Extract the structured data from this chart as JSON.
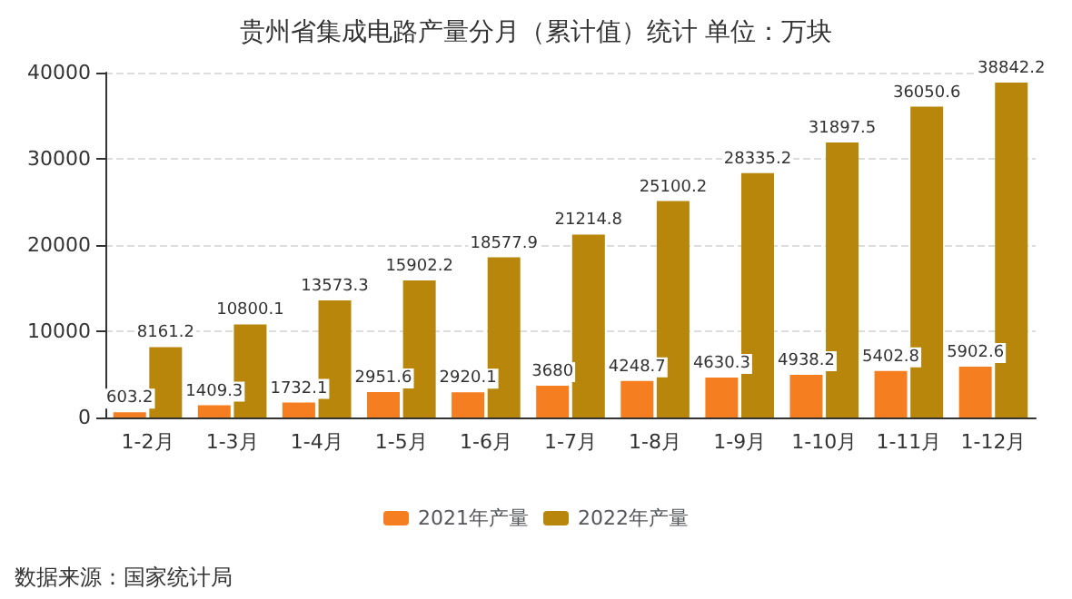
{
  "chart_data": {
    "type": "bar",
    "title": "贵州省集成电路产量分月（累计值）统计 单位：万块",
    "categories": [
      "1-2月",
      "1-3月",
      "1-4月",
      "1-5月",
      "1-6月",
      "1-7月",
      "1-8月",
      "1-9月",
      "1-10月",
      "1-11月",
      "1-12月"
    ],
    "series": [
      {
        "name": "2021年产量",
        "color": "#f57f20",
        "values": [
          603.2,
          1409.3,
          1732.1,
          2951.6,
          2920.1,
          3680,
          4248.7,
          4630.3,
          4938.2,
          5402.8,
          5902.6
        ]
      },
      {
        "name": "2022年产量",
        "color": "#b8860b",
        "values": [
          8161.2,
          10800.1,
          13573.3,
          15902.2,
          18577.9,
          21214.8,
          25100.2,
          28335.2,
          31897.5,
          36050.6,
          38842.2
        ]
      }
    ],
    "ylim": [
      0,
      40000
    ],
    "yticks": [
      0,
      10000,
      20000,
      30000,
      40000
    ],
    "grid": "y",
    "legend": "bottom",
    "data_labels": true,
    "annotations": [
      "数据来源：国家统计局"
    ]
  }
}
